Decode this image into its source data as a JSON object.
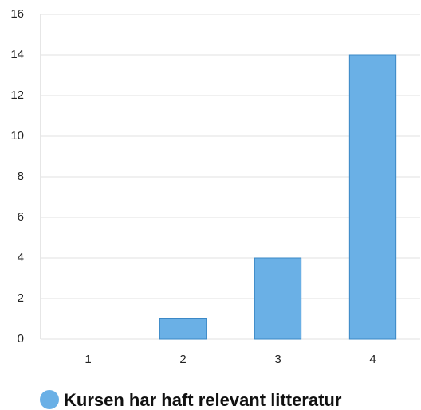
{
  "chart_data": {
    "type": "bar",
    "categories": [
      "1",
      "2",
      "3",
      "4"
    ],
    "series": [
      {
        "name": "Kursen har haft relevant litteratur",
        "color": "#6ab0e6",
        "values": [
          0,
          1,
          4,
          14
        ]
      }
    ],
    "ylim": [
      0,
      16
    ],
    "yticks": [
      0,
      2,
      4,
      6,
      8,
      10,
      12,
      14,
      16
    ],
    "grid": true,
    "legend": "bottom"
  }
}
